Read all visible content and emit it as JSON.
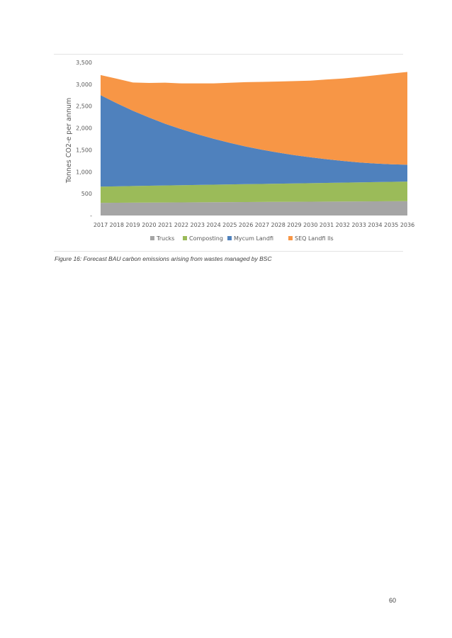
{
  "chart_data": {
    "type": "area",
    "stacked": true,
    "ylabel": "Tonnes CO2-e per annum",
    "ylim": [
      0,
      3500
    ],
    "y_ticks": [
      0,
      500,
      1000,
      1500,
      2000,
      2500,
      3000,
      3500
    ],
    "y_tick_labels": [
      "-",
      "500",
      "1,000",
      "1,500",
      "2,000",
      "2,500",
      "3,000",
      "3,500"
    ],
    "grid": false,
    "legend_position": "bottom",
    "categories": [
      "2017",
      "2018",
      "2019",
      "2020",
      "2021",
      "2022",
      "2023",
      "2024",
      "2025",
      "2026",
      "2027",
      "2028",
      "2029",
      "2030",
      "2031",
      "2032",
      "2033",
      "2034",
      "2035",
      "2036"
    ],
    "series": [
      {
        "name": "Trucks",
        "color": "#a5a5a5",
        "values": [
          290,
          292,
          294,
          296,
          298,
          300,
          302,
          304,
          306,
          308,
          310,
          312,
          314,
          316,
          318,
          320,
          322,
          324,
          326,
          328
        ]
      },
      {
        "name": "Composting",
        "color": "#9bbb59",
        "values": [
          370,
          375,
          380,
          385,
          388,
          392,
          396,
          400,
          404,
          408,
          412,
          416,
          420,
          424,
          428,
          432,
          436,
          440,
          444,
          448
        ]
      },
      {
        "name": "Mycum Landfi",
        "color": "#4f81bd",
        "values": [
          2090,
          1900,
          1720,
          1560,
          1410,
          1280,
          1160,
          1050,
          950,
          860,
          780,
          710,
          645,
          590,
          540,
          495,
          455,
          425,
          400,
          385
        ]
      },
      {
        "name": "SEQ Landfi lls",
        "color": "#f79646",
        "values": [
          460,
          560,
          646,
          789,
          940,
          1048,
          1162,
          1266,
          1375,
          1473,
          1553,
          1624,
          1694,
          1753,
          1824,
          1885,
          1952,
          2016,
          2074,
          2121
        ]
      }
    ]
  },
  "caption": "Figure 16: Forecast BAU carbon emissions arising from wastes managed by BSC",
  "page_number": "60"
}
